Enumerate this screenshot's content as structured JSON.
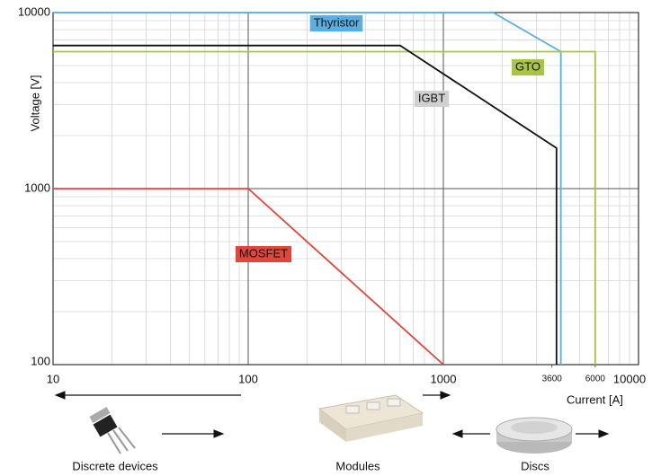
{
  "chart_data": {
    "type": "line",
    "x_label": "Current [A]",
    "y_label": "Voltage [V]",
    "log_x": true,
    "log_y": true,
    "grid": true,
    "minor_grid": true,
    "xlim": [
      10,
      10000
    ],
    "ylim": [
      100,
      10000
    ],
    "xticks": [
      10,
      100,
      1000,
      {
        "value": 3600,
        "label": "3600"
      },
      {
        "value": 6000,
        "label": "6000"
      },
      10000
    ],
    "yticks": [
      100,
      1000,
      10000
    ],
    "series": [
      {
        "name": "Thyristor",
        "color": "#5aaee0",
        "label_color": "#5aaee0",
        "x": [
          10,
          1800,
          4000,
          4000
        ],
        "values": [
          10000,
          10000,
          6000,
          100
        ]
      },
      {
        "name": "GTO",
        "color": "#a8c443",
        "label_color": "#a8c443",
        "x": [
          10,
          6000,
          6000
        ],
        "values": [
          6000,
          6000,
          100
        ]
      },
      {
        "name": "IGBT",
        "color": "#111111",
        "label_color": "#d0d0d0",
        "x": [
          10,
          600,
          3800,
          3800
        ],
        "values": [
          6500,
          6500,
          1700,
          100
        ]
      },
      {
        "name": "MOSFET",
        "color": "#e0463a",
        "label_color": "#e0463a",
        "x": [
          10,
          100,
          1000
        ],
        "values": [
          1000,
          1000,
          100
        ]
      }
    ],
    "annotations": [
      "Discrete devices",
      "Modules",
      "Discs"
    ]
  }
}
